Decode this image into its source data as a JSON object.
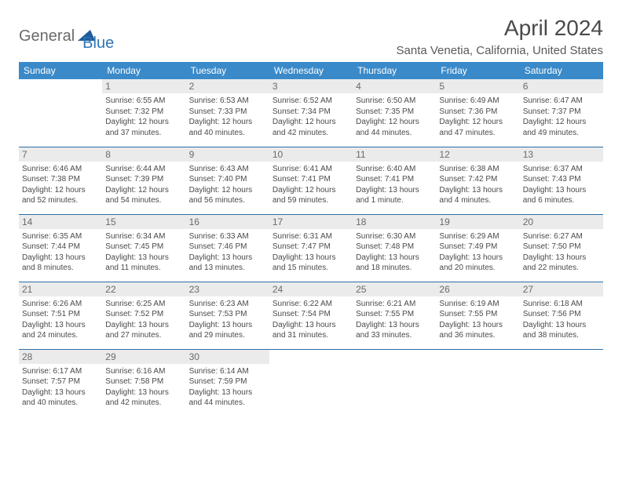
{
  "brand": {
    "part1": "General",
    "part2": "Blue"
  },
  "title": "April 2024",
  "location": "Santa Venetia, California, United States",
  "colors": {
    "header_bg": "#3a8ac9",
    "header_text": "#ffffff",
    "daynum_bg": "#ebebeb",
    "border": "#2e6da4",
    "body_bg": "#ffffff",
    "text": "#3a3a3a",
    "logo_gray": "#6a6a6a",
    "logo_blue": "#2e75b6",
    "triangle": "#1f5c9a"
  },
  "daysOfWeek": [
    "Sunday",
    "Monday",
    "Tuesday",
    "Wednesday",
    "Thursday",
    "Friday",
    "Saturday"
  ],
  "weeks": [
    [
      null,
      {
        "n": "1",
        "sr": "Sunrise: 6:55 AM",
        "ss": "Sunset: 7:32 PM",
        "d1": "Daylight: 12 hours",
        "d2": "and 37 minutes."
      },
      {
        "n": "2",
        "sr": "Sunrise: 6:53 AM",
        "ss": "Sunset: 7:33 PM",
        "d1": "Daylight: 12 hours",
        "d2": "and 40 minutes."
      },
      {
        "n": "3",
        "sr": "Sunrise: 6:52 AM",
        "ss": "Sunset: 7:34 PM",
        "d1": "Daylight: 12 hours",
        "d2": "and 42 minutes."
      },
      {
        "n": "4",
        "sr": "Sunrise: 6:50 AM",
        "ss": "Sunset: 7:35 PM",
        "d1": "Daylight: 12 hours",
        "d2": "and 44 minutes."
      },
      {
        "n": "5",
        "sr": "Sunrise: 6:49 AM",
        "ss": "Sunset: 7:36 PM",
        "d1": "Daylight: 12 hours",
        "d2": "and 47 minutes."
      },
      {
        "n": "6",
        "sr": "Sunrise: 6:47 AM",
        "ss": "Sunset: 7:37 PM",
        "d1": "Daylight: 12 hours",
        "d2": "and 49 minutes."
      }
    ],
    [
      {
        "n": "7",
        "sr": "Sunrise: 6:46 AM",
        "ss": "Sunset: 7:38 PM",
        "d1": "Daylight: 12 hours",
        "d2": "and 52 minutes."
      },
      {
        "n": "8",
        "sr": "Sunrise: 6:44 AM",
        "ss": "Sunset: 7:39 PM",
        "d1": "Daylight: 12 hours",
        "d2": "and 54 minutes."
      },
      {
        "n": "9",
        "sr": "Sunrise: 6:43 AM",
        "ss": "Sunset: 7:40 PM",
        "d1": "Daylight: 12 hours",
        "d2": "and 56 minutes."
      },
      {
        "n": "10",
        "sr": "Sunrise: 6:41 AM",
        "ss": "Sunset: 7:41 PM",
        "d1": "Daylight: 12 hours",
        "d2": "and 59 minutes."
      },
      {
        "n": "11",
        "sr": "Sunrise: 6:40 AM",
        "ss": "Sunset: 7:41 PM",
        "d1": "Daylight: 13 hours",
        "d2": "and 1 minute."
      },
      {
        "n": "12",
        "sr": "Sunrise: 6:38 AM",
        "ss": "Sunset: 7:42 PM",
        "d1": "Daylight: 13 hours",
        "d2": "and 4 minutes."
      },
      {
        "n": "13",
        "sr": "Sunrise: 6:37 AM",
        "ss": "Sunset: 7:43 PM",
        "d1": "Daylight: 13 hours",
        "d2": "and 6 minutes."
      }
    ],
    [
      {
        "n": "14",
        "sr": "Sunrise: 6:35 AM",
        "ss": "Sunset: 7:44 PM",
        "d1": "Daylight: 13 hours",
        "d2": "and 8 minutes."
      },
      {
        "n": "15",
        "sr": "Sunrise: 6:34 AM",
        "ss": "Sunset: 7:45 PM",
        "d1": "Daylight: 13 hours",
        "d2": "and 11 minutes."
      },
      {
        "n": "16",
        "sr": "Sunrise: 6:33 AM",
        "ss": "Sunset: 7:46 PM",
        "d1": "Daylight: 13 hours",
        "d2": "and 13 minutes."
      },
      {
        "n": "17",
        "sr": "Sunrise: 6:31 AM",
        "ss": "Sunset: 7:47 PM",
        "d1": "Daylight: 13 hours",
        "d2": "and 15 minutes."
      },
      {
        "n": "18",
        "sr": "Sunrise: 6:30 AM",
        "ss": "Sunset: 7:48 PM",
        "d1": "Daylight: 13 hours",
        "d2": "and 18 minutes."
      },
      {
        "n": "19",
        "sr": "Sunrise: 6:29 AM",
        "ss": "Sunset: 7:49 PM",
        "d1": "Daylight: 13 hours",
        "d2": "and 20 minutes."
      },
      {
        "n": "20",
        "sr": "Sunrise: 6:27 AM",
        "ss": "Sunset: 7:50 PM",
        "d1": "Daylight: 13 hours",
        "d2": "and 22 minutes."
      }
    ],
    [
      {
        "n": "21",
        "sr": "Sunrise: 6:26 AM",
        "ss": "Sunset: 7:51 PM",
        "d1": "Daylight: 13 hours",
        "d2": "and 24 minutes."
      },
      {
        "n": "22",
        "sr": "Sunrise: 6:25 AM",
        "ss": "Sunset: 7:52 PM",
        "d1": "Daylight: 13 hours",
        "d2": "and 27 minutes."
      },
      {
        "n": "23",
        "sr": "Sunrise: 6:23 AM",
        "ss": "Sunset: 7:53 PM",
        "d1": "Daylight: 13 hours",
        "d2": "and 29 minutes."
      },
      {
        "n": "24",
        "sr": "Sunrise: 6:22 AM",
        "ss": "Sunset: 7:54 PM",
        "d1": "Daylight: 13 hours",
        "d2": "and 31 minutes."
      },
      {
        "n": "25",
        "sr": "Sunrise: 6:21 AM",
        "ss": "Sunset: 7:55 PM",
        "d1": "Daylight: 13 hours",
        "d2": "and 33 minutes."
      },
      {
        "n": "26",
        "sr": "Sunrise: 6:19 AM",
        "ss": "Sunset: 7:55 PM",
        "d1": "Daylight: 13 hours",
        "d2": "and 36 minutes."
      },
      {
        "n": "27",
        "sr": "Sunrise: 6:18 AM",
        "ss": "Sunset: 7:56 PM",
        "d1": "Daylight: 13 hours",
        "d2": "and 38 minutes."
      }
    ],
    [
      {
        "n": "28",
        "sr": "Sunrise: 6:17 AM",
        "ss": "Sunset: 7:57 PM",
        "d1": "Daylight: 13 hours",
        "d2": "and 40 minutes."
      },
      {
        "n": "29",
        "sr": "Sunrise: 6:16 AM",
        "ss": "Sunset: 7:58 PM",
        "d1": "Daylight: 13 hours",
        "d2": "and 42 minutes."
      },
      {
        "n": "30",
        "sr": "Sunrise: 6:14 AM",
        "ss": "Sunset: 7:59 PM",
        "d1": "Daylight: 13 hours",
        "d2": "and 44 minutes."
      },
      null,
      null,
      null,
      null
    ]
  ]
}
